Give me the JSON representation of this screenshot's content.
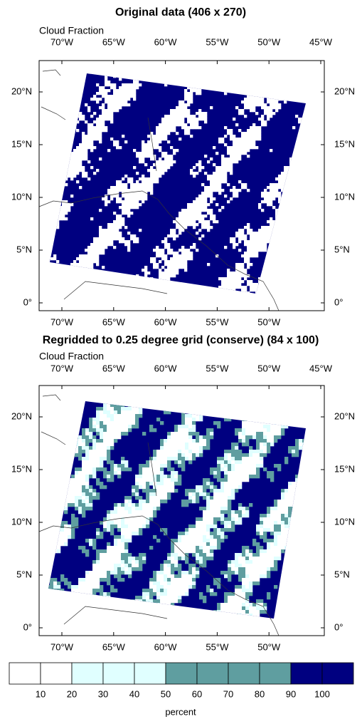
{
  "panels": [
    {
      "title": "Original data (406 x 270)",
      "subtitle": "Cloud Fraction",
      "lon_labels": [
        "70°W",
        "65°W",
        "60°W",
        "55°W",
        "50°W",
        "45°W"
      ],
      "lat_labels": [
        "20°N",
        "15°N",
        "10°N",
        "5°N",
        "0°"
      ]
    },
    {
      "title": "Regridded to 0.25 degree grid (conserve) (84 x 100)",
      "subtitle": "Cloud Fraction",
      "lon_labels": [
        "70°W",
        "65°W",
        "60°W",
        "55°W",
        "50°W",
        "45°W"
      ],
      "lat_labels": [
        "20°N",
        "15°N",
        "10°N",
        "5°N",
        "0°"
      ]
    }
  ],
  "colorbar": {
    "levels": [
      10,
      20,
      30,
      40,
      50,
      60,
      70,
      80,
      90,
      100
    ],
    "colors": [
      "#ffffff",
      "#ffffff",
      "#e0ffff",
      "#e0ffff",
      "#e0ffff",
      "#5f9ea0",
      "#5f9ea0",
      "#5f9ea0",
      "#5f9ea0",
      "#000080",
      "#000080"
    ],
    "label": "percent"
  }
}
